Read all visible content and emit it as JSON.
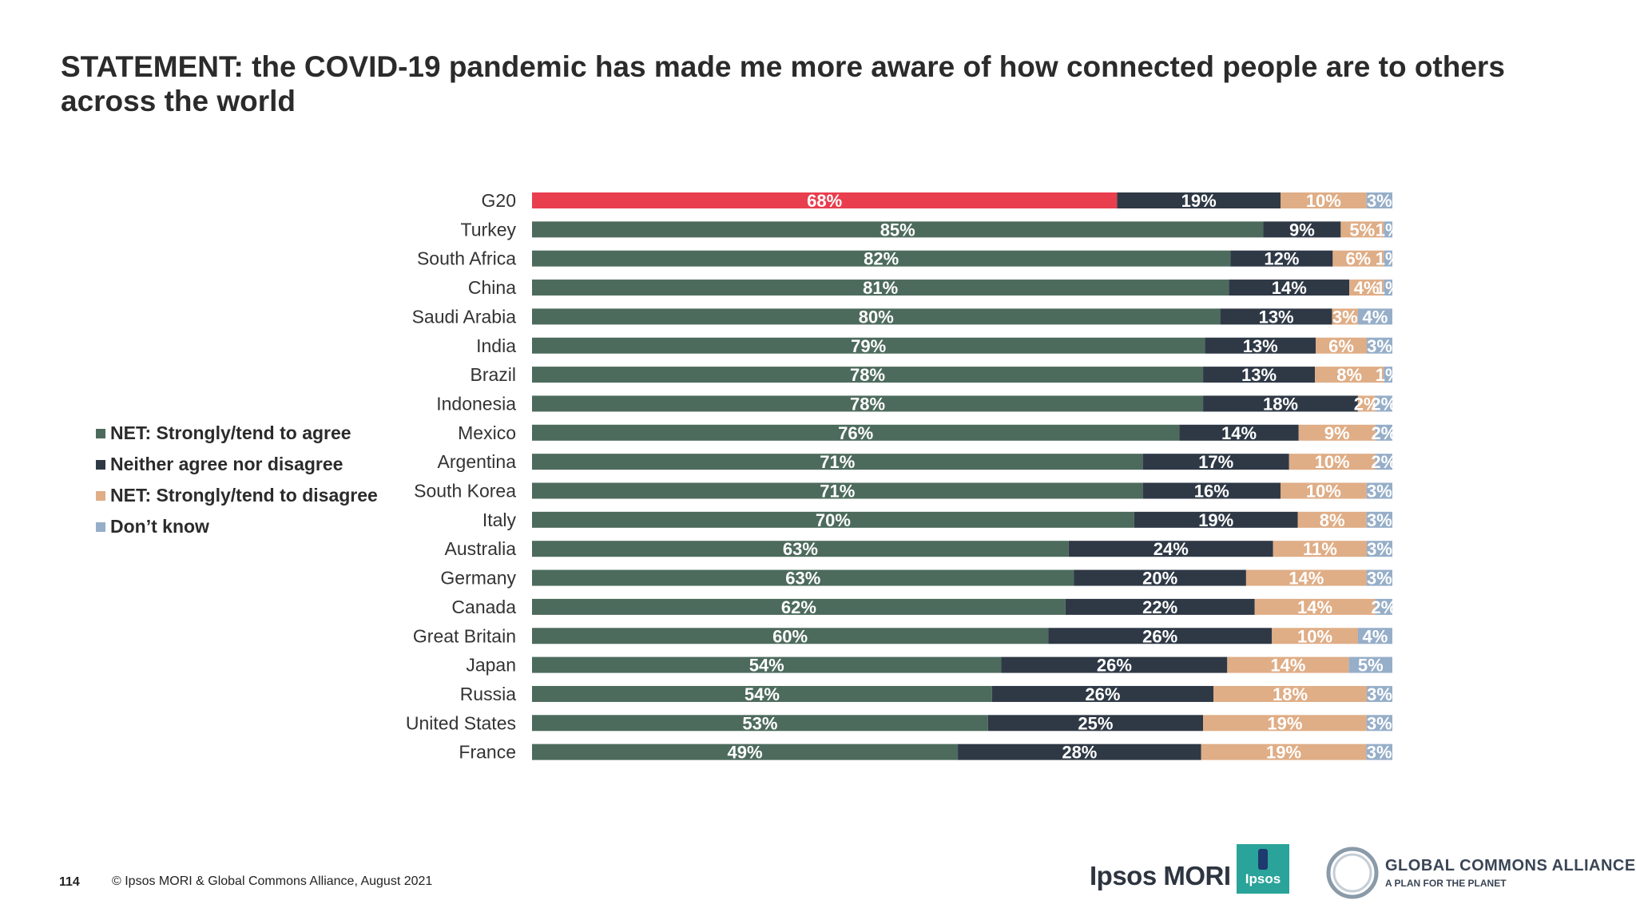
{
  "title": "STATEMENT: the COVID-19 pandemic has made me more aware of how connected people are to others across the world",
  "legend": [
    {
      "label": "NET: Strongly/tend to agree",
      "color": "#4d6b5d"
    },
    {
      "label": "Neither agree nor disagree",
      "color": "#2f3946"
    },
    {
      "label": "NET: Strongly/tend to disagree",
      "color": "#dfad86"
    },
    {
      "label": "Don’t know",
      "color": "#96aec8"
    }
  ],
  "footer": {
    "page_number": "114",
    "copyright": "© Ipsos MORI & Global Commons Alliance, August 2021",
    "logo_ipsos_mori": "Ipsos MORI",
    "logo_ipsos_box": "Ipsos",
    "logo_gca_name": "GLOBAL COMMONS ALLIANCE",
    "logo_gca_tagline": "A PLAN FOR THE PLANET"
  },
  "chart_data": {
    "type": "bar",
    "orientation": "horizontal",
    "stacked": true,
    "categories": [
      "G20",
      "Turkey",
      "South Africa",
      "China",
      "Saudi Arabia",
      "India",
      "Brazil",
      "Indonesia",
      "Mexico",
      "Argentina",
      "South Korea",
      "Italy",
      "Australia",
      "Germany",
      "Canada",
      "Great Britain",
      "Japan",
      "Russia",
      "United States",
      "France"
    ],
    "highlight_category": "G20",
    "highlight_color": "#e83e4e",
    "series": [
      {
        "name": "NET: Strongly/tend to agree",
        "color": "#4d6b5d",
        "values": [
          68,
          85,
          82,
          81,
          80,
          79,
          78,
          78,
          76,
          71,
          71,
          70,
          63,
          63,
          62,
          60,
          54,
          54,
          53,
          49
        ]
      },
      {
        "name": "Neither agree nor disagree",
        "color": "#2f3946",
        "values": [
          19,
          9,
          12,
          14,
          13,
          13,
          13,
          18,
          14,
          17,
          16,
          19,
          24,
          20,
          22,
          26,
          26,
          26,
          25,
          28
        ]
      },
      {
        "name": "NET: Strongly/tend to disagree",
        "color": "#dfad86",
        "values": [
          10,
          5,
          6,
          4,
          3,
          6,
          8,
          2,
          9,
          10,
          10,
          8,
          11,
          14,
          14,
          10,
          14,
          18,
          19,
          19
        ]
      },
      {
        "name": "Don’t know",
        "color": "#96aec8",
        "values": [
          3,
          1,
          1,
          1,
          4,
          3,
          1,
          2,
          2,
          2,
          3,
          3,
          3,
          3,
          2,
          4,
          5,
          3,
          3,
          3
        ]
      }
    ],
    "value_format": "percent",
    "legend_position": "left",
    "grid": false
  }
}
